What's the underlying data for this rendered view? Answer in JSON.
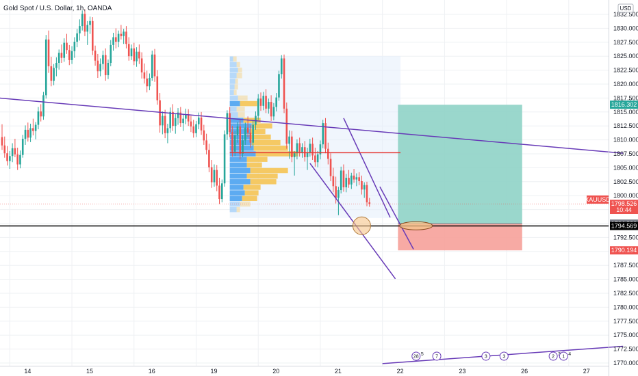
{
  "chart_title": "Gold Spot / U.S. Dollar, 1h, OANDA",
  "currency_button": "USD",
  "colors": {
    "up": "#26a69a",
    "down": "#ef5350",
    "trendline": "#673ab7",
    "poc": "#e53935",
    "support": "#000000",
    "vp_buy": "#4da3f0",
    "vp_sell": "#f5c453",
    "vp_bg": "#e3effc",
    "target_zone": "#8fd3c6",
    "stop_zone": "#f6a19a",
    "grid": "#eef0f3"
  },
  "chart_data": {
    "type": "candlestick",
    "symbol": "XAUUSD",
    "interval": "1h",
    "ylim": [
      1767.5,
      1833.5
    ],
    "y_ticks": [
      1770.0,
      1772.5,
      1775.0,
      1777.5,
      1780.0,
      1782.5,
      1785.0,
      1787.5,
      1790.0,
      1792.5,
      1795.0,
      1797.5,
      1800.0,
      1802.5,
      1805.0,
      1807.5,
      1810.0,
      1812.5,
      1815.0,
      1817.5,
      1820.0,
      1822.5,
      1825.0,
      1827.5,
      1830.0,
      1832.5
    ],
    "x_labels": [
      {
        "label": "14",
        "bar": 3
      },
      {
        "label": "15",
        "bar": 27
      },
      {
        "label": "16",
        "bar": 51
      },
      {
        "label": "19",
        "bar": 75
      },
      {
        "label": "20",
        "bar": 99
      },
      {
        "label": "21",
        "bar": 123
      },
      {
        "label": "22",
        "bar": 147
      },
      {
        "label": "23",
        "bar": 171
      },
      {
        "label": "26",
        "bar": 195
      },
      {
        "label": "27",
        "bar": 219
      }
    ],
    "price_tags": [
      {
        "label": "1816.302",
        "value": 1816.302,
        "style": "target"
      },
      {
        "label": "XAUUSD",
        "value": 1799.3,
        "style": "current"
      },
      {
        "label": "1798.526",
        "value": 1798.526,
        "style": "current"
      },
      {
        "label": "10:44",
        "value": 1797.45,
        "style": "current"
      },
      {
        "label": "1794.990",
        "value": 1794.99,
        "style": "entry"
      },
      {
        "label": "1794.569",
        "value": 1794.569,
        "style": "support"
      },
      {
        "label": "1790.194",
        "value": 1790.194,
        "style": "stop"
      }
    ],
    "candles": [
      [
        1810.5,
        1812.8,
        1808.2,
        1809.0
      ],
      [
        1809.0,
        1810.6,
        1806.8,
        1807.6
      ],
      [
        1807.6,
        1808.9,
        1805.4,
        1806.2
      ],
      [
        1806.2,
        1808.0,
        1804.8,
        1807.1
      ],
      [
        1807.1,
        1809.4,
        1806.0,
        1808.5
      ],
      [
        1808.5,
        1810.2,
        1806.9,
        1807.4
      ],
      [
        1807.4,
        1808.6,
        1804.6,
        1805.6
      ],
      [
        1805.6,
        1808.1,
        1804.9,
        1807.3
      ],
      [
        1807.3,
        1810.9,
        1806.8,
        1810.2
      ],
      [
        1810.2,
        1812.6,
        1809.1,
        1811.8
      ],
      [
        1811.8,
        1813.1,
        1809.7,
        1810.4
      ],
      [
        1810.4,
        1812.9,
        1809.6,
        1812.1
      ],
      [
        1812.1,
        1813.8,
        1810.8,
        1811.6
      ],
      [
        1811.6,
        1813.2,
        1810.1,
        1812.7
      ],
      [
        1812.7,
        1815.9,
        1811.9,
        1815.1
      ],
      [
        1815.1,
        1816.4,
        1813.3,
        1814.2
      ],
      [
        1814.2,
        1818.6,
        1813.6,
        1818.0
      ],
      [
        1818.0,
        1828.8,
        1817.4,
        1828.0
      ],
      [
        1828.0,
        1829.6,
        1822.0,
        1823.2
      ],
      [
        1823.2,
        1824.9,
        1819.6,
        1820.6
      ],
      [
        1820.6,
        1823.6,
        1819.8,
        1822.9
      ],
      [
        1822.9,
        1824.8,
        1821.4,
        1823.8
      ],
      [
        1823.8,
        1826.2,
        1822.6,
        1825.6
      ],
      [
        1825.6,
        1827.1,
        1823.8,
        1824.7
      ],
      [
        1824.7,
        1828.2,
        1824.0,
        1827.4
      ],
      [
        1827.4,
        1829.0,
        1825.4,
        1826.1
      ],
      [
        1826.1,
        1827.0,
        1823.4,
        1824.3
      ],
      [
        1824.3,
        1826.8,
        1823.6,
        1825.9
      ],
      [
        1825.9,
        1828.4,
        1824.7,
        1827.6
      ],
      [
        1827.6,
        1829.9,
        1826.6,
        1829.1
      ],
      [
        1829.1,
        1831.6,
        1827.8,
        1830.4
      ],
      [
        1830.4,
        1833.2,
        1829.6,
        1832.6
      ],
      [
        1832.6,
        1833.4,
        1828.6,
        1829.4
      ],
      [
        1829.4,
        1831.3,
        1827.0,
        1830.6
      ],
      [
        1830.6,
        1832.1,
        1829.0,
        1831.3
      ],
      [
        1831.3,
        1832.0,
        1825.2,
        1826.0
      ],
      [
        1826.0,
        1826.9,
        1823.3,
        1824.2
      ],
      [
        1824.2,
        1825.4,
        1821.1,
        1822.3
      ],
      [
        1822.3,
        1824.6,
        1821.4,
        1823.6
      ],
      [
        1823.6,
        1826.0,
        1822.6,
        1825.2
      ],
      [
        1825.2,
        1826.4,
        1820.6,
        1821.6
      ],
      [
        1821.6,
        1824.4,
        1820.9,
        1823.8
      ],
      [
        1823.8,
        1827.9,
        1823.2,
        1827.0
      ],
      [
        1827.0,
        1829.2,
        1826.0,
        1828.4
      ],
      [
        1828.4,
        1830.0,
        1826.4,
        1827.6
      ],
      [
        1827.6,
        1829.6,
        1826.6,
        1829.0
      ],
      [
        1829.0,
        1830.6,
        1828.0,
        1828.6
      ],
      [
        1828.6,
        1829.9,
        1827.2,
        1829.4
      ],
      [
        1829.4,
        1830.4,
        1826.4,
        1827.2
      ],
      [
        1827.2,
        1828.4,
        1824.2,
        1825.0
      ],
      [
        1825.0,
        1827.1,
        1824.3,
        1826.4
      ],
      [
        1826.4,
        1827.4,
        1823.4,
        1824.1
      ],
      [
        1824.1,
        1826.6,
        1823.1,
        1825.8
      ],
      [
        1825.8,
        1827.1,
        1823.6,
        1824.6
      ],
      [
        1824.6,
        1825.7,
        1821.0,
        1822.1
      ],
      [
        1822.1,
        1823.7,
        1820.1,
        1821.0
      ],
      [
        1821.0,
        1822.4,
        1818.5,
        1819.6
      ],
      [
        1819.6,
        1821.9,
        1818.9,
        1821.1
      ],
      [
        1821.1,
        1826.0,
        1820.6,
        1825.3
      ],
      [
        1825.3,
        1826.3,
        1820.4,
        1821.4
      ],
      [
        1821.4,
        1822.5,
        1816.3,
        1817.1
      ],
      [
        1817.1,
        1818.4,
        1811.3,
        1812.6
      ],
      [
        1812.6,
        1815.1,
        1811.0,
        1814.3
      ],
      [
        1814.3,
        1815.4,
        1810.3,
        1811.2
      ],
      [
        1811.2,
        1812.9,
        1809.4,
        1812.1
      ],
      [
        1812.1,
        1815.8,
        1811.3,
        1815.0
      ],
      [
        1815.0,
        1816.4,
        1811.6,
        1812.5
      ],
      [
        1812.5,
        1814.6,
        1811.1,
        1813.9
      ],
      [
        1813.9,
        1815.7,
        1812.7,
        1814.9
      ],
      [
        1814.9,
        1815.9,
        1812.3,
        1813.0
      ],
      [
        1813.0,
        1814.5,
        1811.6,
        1813.8
      ],
      [
        1813.8,
        1815.6,
        1812.8,
        1814.6
      ],
      [
        1814.6,
        1815.5,
        1812.5,
        1813.3
      ],
      [
        1813.3,
        1814.3,
        1811.4,
        1812.4
      ],
      [
        1812.4,
        1813.6,
        1810.4,
        1811.2
      ],
      [
        1811.2,
        1813.4,
        1810.5,
        1812.8
      ],
      [
        1812.8,
        1814.9,
        1811.9,
        1814.0
      ],
      [
        1814.0,
        1815.0,
        1810.9,
        1811.7
      ],
      [
        1811.7,
        1812.7,
        1809.1,
        1809.9
      ],
      [
        1809.9,
        1811.1,
        1807.4,
        1808.2
      ],
      [
        1808.2,
        1809.3,
        1804.2,
        1805.1
      ],
      [
        1805.1,
        1806.4,
        1801.4,
        1802.4
      ],
      [
        1802.4,
        1805.6,
        1801.6,
        1804.6
      ],
      [
        1804.6,
        1805.5,
        1800.8,
        1801.8
      ],
      [
        1801.8,
        1803.2,
        1798.5,
        1799.4
      ],
      [
        1799.4,
        1802.9,
        1798.8,
        1802.2
      ],
      [
        1802.2,
        1811.7,
        1801.6,
        1811.0
      ],
      [
        1811.0,
        1815.3,
        1810.0,
        1814.8
      ],
      [
        1814.8,
        1815.9,
        1810.5,
        1811.4
      ],
      [
        1811.4,
        1812.5,
        1807.0,
        1807.9
      ],
      [
        1807.9,
        1811.6,
        1807.1,
        1810.8
      ],
      [
        1810.8,
        1813.2,
        1809.5,
        1812.4
      ],
      [
        1812.4,
        1813.5,
        1806.5,
        1807.5
      ],
      [
        1807.5,
        1810.8,
        1806.9,
        1809.9
      ],
      [
        1809.9,
        1813.1,
        1809.1,
        1812.2
      ],
      [
        1812.2,
        1814.2,
        1810.5,
        1811.3
      ],
      [
        1811.3,
        1812.6,
        1808.6,
        1809.5
      ],
      [
        1809.5,
        1813.5,
        1808.9,
        1812.7
      ],
      [
        1812.7,
        1815.1,
        1811.8,
        1814.3
      ],
      [
        1814.3,
        1818.2,
        1813.6,
        1817.4
      ],
      [
        1817.4,
        1818.5,
        1815.2,
        1816.1
      ],
      [
        1816.1,
        1818.6,
        1815.3,
        1817.9
      ],
      [
        1817.9,
        1819.1,
        1814.8,
        1815.6
      ],
      [
        1815.6,
        1817.4,
        1814.7,
        1816.8
      ],
      [
        1816.8,
        1818.0,
        1813.4,
        1814.2
      ],
      [
        1814.2,
        1816.6,
        1813.5,
        1815.9
      ],
      [
        1815.9,
        1818.4,
        1815.1,
        1817.6
      ],
      [
        1817.6,
        1822.4,
        1817.0,
        1821.8
      ],
      [
        1821.8,
        1825.2,
        1821.0,
        1824.6
      ],
      [
        1824.6,
        1825.3,
        1814.8,
        1815.6
      ],
      [
        1815.6,
        1816.7,
        1808.4,
        1809.3
      ],
      [
        1809.3,
        1811.7,
        1806.6,
        1810.6
      ],
      [
        1810.6,
        1811.6,
        1806.0,
        1806.9
      ],
      [
        1806.9,
        1808.0,
        1803.6,
        1807.6
      ],
      [
        1807.6,
        1810.1,
        1806.5,
        1809.4
      ],
      [
        1809.4,
        1810.4,
        1807.0,
        1807.8
      ],
      [
        1807.8,
        1809.4,
        1806.8,
        1808.7
      ],
      [
        1808.7,
        1809.8,
        1806.1,
        1806.9
      ],
      [
        1806.9,
        1808.6,
        1804.6,
        1807.8
      ],
      [
        1807.8,
        1810.2,
        1807.0,
        1809.3
      ],
      [
        1809.3,
        1810.4,
        1806.4,
        1807.2
      ],
      [
        1807.2,
        1808.6,
        1805.2,
        1806.0
      ],
      [
        1806.0,
        1808.0,
        1805.1,
        1807.4
      ],
      [
        1807.4,
        1809.9,
        1806.5,
        1809.2
      ],
      [
        1809.2,
        1813.6,
        1808.5,
        1813.0
      ],
      [
        1813.0,
        1813.9,
        1807.6,
        1808.4
      ],
      [
        1808.4,
        1809.5,
        1805.6,
        1806.6
      ],
      [
        1806.6,
        1807.6,
        1802.6,
        1803.5
      ],
      [
        1803.5,
        1805.0,
        1800.6,
        1801.7
      ],
      [
        1801.7,
        1803.4,
        1798.6,
        1799.6
      ],
      [
        1799.6,
        1801.6,
        1796.5,
        1801.0
      ],
      [
        1801.0,
        1805.2,
        1800.4,
        1804.5
      ],
      [
        1804.5,
        1805.6,
        1800.7,
        1801.5
      ],
      [
        1801.5,
        1803.9,
        1800.6,
        1803.2
      ],
      [
        1803.2,
        1804.6,
        1801.4,
        1802.0
      ],
      [
        1802.0,
        1804.1,
        1801.2,
        1803.6
      ],
      [
        1803.6,
        1804.8,
        1802.3,
        1802.9
      ],
      [
        1802.9,
        1804.0,
        1801.7,
        1803.3
      ],
      [
        1803.3,
        1804.2,
        1801.9,
        1802.6
      ],
      [
        1802.6,
        1803.6,
        1800.2,
        1801.1
      ],
      [
        1801.1,
        1802.4,
        1799.6,
        1801.9
      ],
      [
        1801.9,
        1802.5,
        1798.1,
        1798.8
      ],
      [
        1798.8,
        1799.6,
        1798.0,
        1798.5
      ]
    ],
    "volume_profile": {
      "rows": [
        {
          "price": 1824.5,
          "buy": 0.05,
          "sell": 0.05
        },
        {
          "price": 1823.5,
          "buy": 0.1,
          "sell": 0.05
        },
        {
          "price": 1822.5,
          "buy": 0.12,
          "sell": 0.06
        },
        {
          "price": 1821.5,
          "buy": 0.1,
          "sell": 0.08
        },
        {
          "price": 1820.5,
          "buy": 0.08,
          "sell": 0.04
        },
        {
          "price": 1819.5,
          "buy": 0.07,
          "sell": 0.05
        },
        {
          "price": 1818.5,
          "buy": 0.06,
          "sell": 0.04
        },
        {
          "price": 1817.5,
          "buy": 0.12,
          "sell": 0.14
        },
        {
          "price": 1816.5,
          "buy": 0.15,
          "sell": 0.25
        },
        {
          "price": 1815.5,
          "buy": 0.1,
          "sell": 0.12
        },
        {
          "price": 1814.5,
          "buy": 0.12,
          "sell": 0.1
        },
        {
          "price": 1813.5,
          "buy": 0.2,
          "sell": 0.25
        },
        {
          "price": 1812.5,
          "buy": 0.32,
          "sell": 0.3
        },
        {
          "price": 1811.5,
          "buy": 0.3,
          "sell": 0.22
        },
        {
          "price": 1810.5,
          "buy": 0.3,
          "sell": 0.3
        },
        {
          "price": 1809.5,
          "buy": 0.32,
          "sell": 0.42
        },
        {
          "price": 1808.5,
          "buy": 0.35,
          "sell": 0.5
        },
        {
          "price": 1807.5,
          "buy": 0.38,
          "sell": 0.62
        },
        {
          "price": 1806.5,
          "buy": 0.25,
          "sell": 0.3
        },
        {
          "price": 1805.5,
          "buy": 0.25,
          "sell": 0.22
        },
        {
          "price": 1804.5,
          "buy": 0.3,
          "sell": 0.55
        },
        {
          "price": 1803.5,
          "buy": 0.25,
          "sell": 0.45
        },
        {
          "price": 1802.5,
          "buy": 0.3,
          "sell": 0.38
        },
        {
          "price": 1801.5,
          "buy": 0.2,
          "sell": 0.25
        },
        {
          "price": 1800.5,
          "buy": 0.22,
          "sell": 0.2
        },
        {
          "price": 1799.5,
          "buy": 0.18,
          "sell": 0.22
        },
        {
          "price": 1798.5,
          "buy": 0.15,
          "sell": 0.15
        },
        {
          "price": 1797.5,
          "buy": 0.1,
          "sell": 0.05
        }
      ],
      "poc_price": 1807.7
    },
    "annotations": {
      "trendline_upper": [
        [
          -1,
          1817.5
        ],
        [
          240,
          1807.6
        ]
      ],
      "trendline_bottom": [
        [
          147,
          1769.9
        ],
        [
          240,
          1773.0
        ]
      ],
      "channel_top": [
        [
          132,
          1813.9
        ],
        [
          150,
          1796.1
        ]
      ],
      "channel_bottom": [
        [
          119,
          1805.8
        ],
        [
          152,
          1785.1
        ]
      ],
      "channel_short": [
        [
          146,
          1801.6
        ],
        [
          159,
          1790.4
        ]
      ],
      "support_price": 1794.569,
      "poc_line": [
        [
          88,
          1807.7
        ],
        [
          154,
          1807.7
        ]
      ],
      "vp_box": {
        "x0": 88,
        "x1": 154,
        "y0": 1796.0,
        "y1": 1825.0
      },
      "long_position": {
        "x0": 153,
        "x1": 201,
        "entry": 1794.99,
        "target": 1816.302,
        "stop": 1790.194
      },
      "ellipse_low": {
        "bar": 139,
        "price": 1794.6
      },
      "ellipse_entry": {
        "bar": 160,
        "price": 1794.6
      }
    },
    "events": [
      {
        "bar": 160,
        "label": "28",
        "count": "5"
      },
      {
        "bar": 168,
        "label": "7",
        "count": ""
      },
      {
        "bar": 187,
        "label": "3",
        "count": ""
      },
      {
        "bar": 194,
        "label": "3",
        "count": ""
      },
      {
        "bar": 213,
        "label": "2",
        "count": "3"
      },
      {
        "bar": 217,
        "label": "1",
        "count": "4"
      }
    ]
  }
}
